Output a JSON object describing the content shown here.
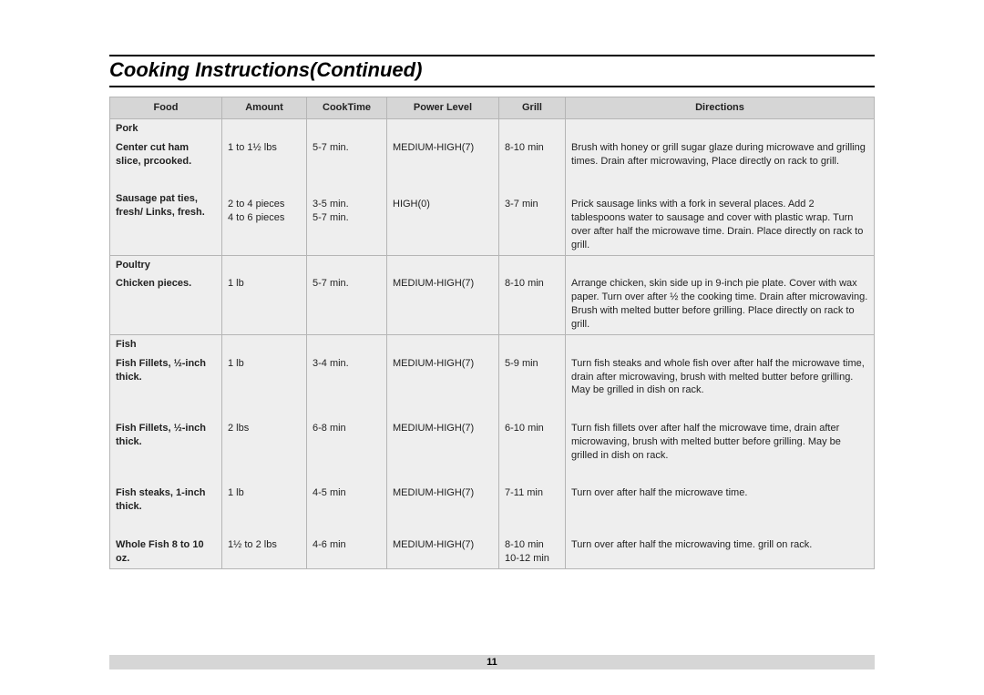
{
  "page": {
    "title": "Cooking Instructions(Continued)",
    "number": "11",
    "bg_color": "#ffffff",
    "table_bg": "#eeeeee",
    "header_bg": "#d6d6d6",
    "border_color": "#b5b5b5",
    "title_fontsize": 22,
    "body_fontsize": 11
  },
  "table": {
    "columns": [
      "Food",
      "Amount",
      "CookTime",
      "Power Level",
      "Grill",
      "Directions"
    ],
    "rows": [
      {
        "sep": true,
        "food_bold": "Pork",
        "food": "",
        "amount": "",
        "cook": "",
        "power": "",
        "grill": "",
        "dir": ""
      },
      {
        "food_bold": "Center cut ham slice, prcooked.",
        "food": "",
        "amount": "1 to 1½ lbs",
        "cook": "5-7 min.",
        "power": "MEDIUM-HIGH(7)",
        "grill": "8-10 min",
        "dir": "Brush with honey or grill sugar glaze during microwave and grilling times. Drain after microwaving, Place directly on rack to grill."
      },
      {
        "food_bold": "Sausage pat ties, fresh/ Links, fresh.",
        "food": "",
        "amount": "",
        "cook": "",
        "power": "",
        "grill": "",
        "dir": ""
      },
      {
        "food_bold": "",
        "food": "",
        "amount": "2 to 4 pieces",
        "cook": "3-5 min.",
        "power": "HIGH(0)",
        "grill": "3-7 min",
        "dir": "Prick sausage links with a fork in several places. Add 2 tablespoons water to sausage and cover with plastic wrap. Turn over after half the microwave time. Drain. Place directly on rack to grill.",
        "am2": "4 to 6 pieces",
        "ck2": "5-7 min."
      },
      {
        "sep": true,
        "food_bold": "Poultry",
        "food": "",
        "amount": "",
        "cook": "",
        "power": "",
        "grill": "",
        "dir": ""
      },
      {
        "food_bold": "Chicken pieces.",
        "food": "",
        "amount": "1 lb",
        "cook": "5-7 min.",
        "power": "MEDIUM-HIGH(7)",
        "grill": "8-10 min",
        "dir": "Arrange chicken, skin side up in 9-inch pie plate. Cover with wax paper. Turn over after ½ the cooking time. Drain after microwaving. Brush with melted butter before grilling. Place directly on rack to grill."
      },
      {
        "sep": true,
        "food_bold": "Fish",
        "food": "",
        "amount": "",
        "cook": "",
        "power": "",
        "grill": "",
        "dir": ""
      },
      {
        "food_bold": "Fish Fillets, ½-inch thick.",
        "food": "",
        "amount": "1 lb",
        "cook": "3-4 min.",
        "power": "MEDIUM-HIGH(7)",
        "grill": "5-9 min",
        "dir": "Turn fish steaks and whole fish over after half the microwave time, drain after microwaving, brush with melted butter before grilling. May be grilled in dish on rack."
      },
      {
        "food_bold": "Fish Fillets, ½-inch thick.",
        "food": "",
        "amount": "2 lbs",
        "cook": "6-8 min",
        "power": "MEDIUM-HIGH(7)",
        "grill": "6-10 min",
        "dir": "Turn fish fillets over after half the microwave time, drain after microwaving, brush with melted butter before grilling. May be grilled in dish on rack."
      },
      {
        "food_bold": "Fish steaks, 1-inch thick.",
        "food": "",
        "amount": "1 lb",
        "cook": "4-5 min",
        "power": "MEDIUM-HIGH(7)",
        "grill": "7-11 min",
        "dir": "Turn over after half the microwave time."
      },
      {
        "last": true,
        "food_bold": "Whole Fish 8 to 10 oz.",
        "food": "",
        "amount": "1½ to 2 lbs",
        "cook": "4-6 min",
        "power": "MEDIUM-HIGH(7)",
        "grill": "8-10 min 10-12 min",
        "dir": "Turn over after half the microwaving time. grill on rack."
      }
    ]
  }
}
